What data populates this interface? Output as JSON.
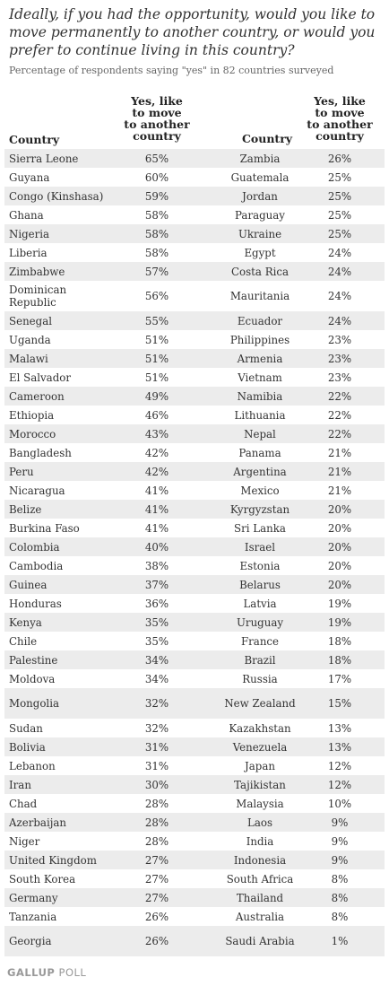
{
  "title": "Ideally, if you had the opportunity, would you like to move permanently to another country, or would you prefer to continue living in this country?",
  "subtitle": "Percentage of respondents saying \"yes\" in 82 countries surveyed",
  "headers": {
    "country": "Country",
    "pct_line1": "Yes, like",
    "pct_line2": "to move",
    "pct_line3": "to another",
    "pct_line4": "country"
  },
  "rows": [
    {
      "c1": "Sierra Leone",
      "p1": "65%",
      "c2": "Zambia",
      "p2": "26%"
    },
    {
      "c1": "Guyana",
      "p1": "60%",
      "c2": "Guatemala",
      "p2": "25%"
    },
    {
      "c1": "Congo (Kinshasa)",
      "p1": "59%",
      "c2": "Jordan",
      "p2": "25%"
    },
    {
      "c1": "Ghana",
      "p1": "58%",
      "c2": "Paraguay",
      "p2": "25%"
    },
    {
      "c1": "Nigeria",
      "p1": "58%",
      "c2": "Ukraine",
      "p2": "25%"
    },
    {
      "c1": "Liberia",
      "p1": "58%",
      "c2": "Egypt",
      "p2": "24%"
    },
    {
      "c1": "Zimbabwe",
      "p1": "57%",
      "c2": "Costa Rica",
      "p2": "24%"
    },
    {
      "c1": "Dominican Republic",
      "p1": "56%",
      "c2": "Mauritania",
      "p2": "24%"
    },
    {
      "c1": "Senegal",
      "p1": "55%",
      "c2": "Ecuador",
      "p2": "24%"
    },
    {
      "c1": "Uganda",
      "p1": "51%",
      "c2": "Philippines",
      "p2": "23%"
    },
    {
      "c1": "Malawi",
      "p1": "51%",
      "c2": "Armenia",
      "p2": "23%"
    },
    {
      "c1": "El Salvador",
      "p1": "51%",
      "c2": "Vietnam",
      "p2": "23%"
    },
    {
      "c1": "Cameroon",
      "p1": "49%",
      "c2": "Namibia",
      "p2": "22%"
    },
    {
      "c1": "Ethiopia",
      "p1": "46%",
      "c2": "Lithuania",
      "p2": "22%"
    },
    {
      "c1": "Morocco",
      "p1": "43%",
      "c2": "Nepal",
      "p2": "22%"
    },
    {
      "c1": "Bangladesh",
      "p1": "42%",
      "c2": "Panama",
      "p2": "21%"
    },
    {
      "c1": "Peru",
      "p1": "42%",
      "c2": "Argentina",
      "p2": "21%"
    },
    {
      "c1": "Nicaragua",
      "p1": "41%",
      "c2": "Mexico",
      "p2": "21%"
    },
    {
      "c1": "Belize",
      "p1": "41%",
      "c2": "Kyrgyzstan",
      "p2": "20%"
    },
    {
      "c1": "Burkina Faso",
      "p1": "41%",
      "c2": "Sri Lanka",
      "p2": "20%"
    },
    {
      "c1": "Colombia",
      "p1": "40%",
      "c2": "Israel",
      "p2": "20%"
    },
    {
      "c1": "Cambodia",
      "p1": "38%",
      "c2": "Estonia",
      "p2": "20%"
    },
    {
      "c1": "Guinea",
      "p1": "37%",
      "c2": "Belarus",
      "p2": "20%"
    },
    {
      "c1": "Honduras",
      "p1": "36%",
      "c2": "Latvia",
      "p2": "19%"
    },
    {
      "c1": "Kenya",
      "p1": "35%",
      "c2": "Uruguay",
      "p2": "19%"
    },
    {
      "c1": "Chile",
      "p1": "35%",
      "c2": "France",
      "p2": "18%"
    },
    {
      "c1": "Palestine",
      "p1": "34%",
      "c2": "Brazil",
      "p2": "18%"
    },
    {
      "c1": "Moldova",
      "p1": "34%",
      "c2": "Russia",
      "p2": "17%"
    },
    {
      "c1": "Mongolia",
      "p1": "32%",
      "c2": "New Zealand",
      "p2": "15%"
    },
    {
      "c1": "Sudan",
      "p1": "32%",
      "c2": "Kazakhstan",
      "p2": "13%"
    },
    {
      "c1": "Bolivia",
      "p1": "31%",
      "c2": "Venezuela",
      "p2": "13%"
    },
    {
      "c1": "Lebanon",
      "p1": "31%",
      "c2": "Japan",
      "p2": "12%"
    },
    {
      "c1": "Iran",
      "p1": "30%",
      "c2": "Tajikistan",
      "p2": "12%"
    },
    {
      "c1": "Chad",
      "p1": "28%",
      "c2": "Malaysia",
      "p2": "10%"
    },
    {
      "c1": "Azerbaijan",
      "p1": "28%",
      "c2": "Laos",
      "p2": "9%"
    },
    {
      "c1": "Niger",
      "p1": "28%",
      "c2": "India",
      "p2": "9%"
    },
    {
      "c1": "United Kingdom",
      "p1": "27%",
      "c2": "Indonesia",
      "p2": "9%"
    },
    {
      "c1": "South Korea",
      "p1": "27%",
      "c2": "South Africa",
      "p2": "8%"
    },
    {
      "c1": "Germany",
      "p1": "27%",
      "c2": "Thailand",
      "p2": "8%"
    },
    {
      "c1": "Tanzania",
      "p1": "26%",
      "c2": "Australia",
      "p2": "8%"
    },
    {
      "c1": "Georgia",
      "p1": "26%",
      "c2": "Saudi Arabia",
      "p2": "1%"
    }
  ],
  "footer": {
    "brand": "GALLUP",
    "suffix": " POLL"
  }
}
